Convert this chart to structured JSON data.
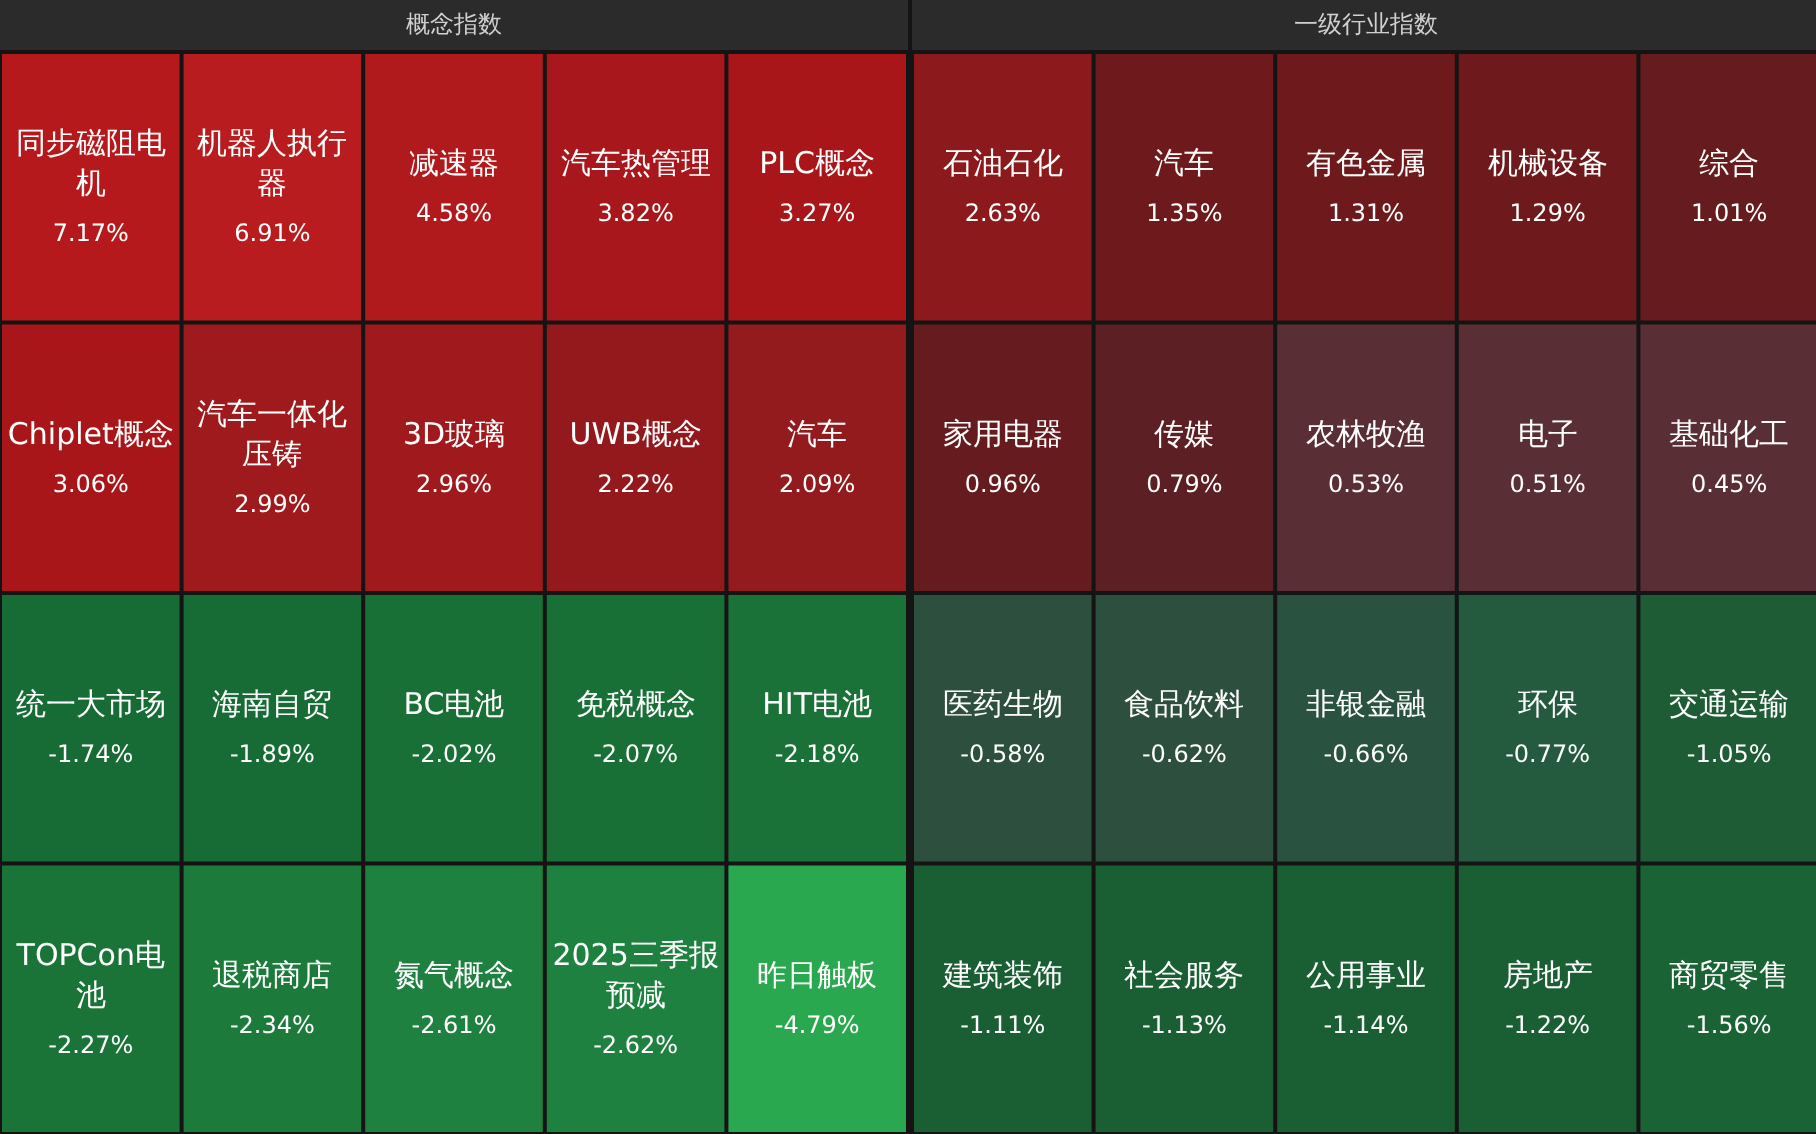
{
  "chart_data": [
    {
      "type": "other",
      "title": "概念指数",
      "categories": [
        "同步磁阻电机",
        "机器人执行器",
        "减速器",
        "汽车热管理",
        "PLC概念",
        "Chiplet概念",
        "汽车一体化压铸",
        "3D玻璃",
        "UWB概念",
        "汽车",
        "统一大市场",
        "海南自贸",
        "BC电池",
        "免税概念",
        "HIT电池",
        "TOPCon电池",
        "退税商店",
        "氮气概念",
        "2025三季报预减",
        "昨日触板"
      ],
      "values": [
        7.17,
        6.91,
        4.58,
        3.82,
        3.27,
        3.06,
        2.99,
        2.96,
        2.22,
        2.09,
        -1.74,
        -1.89,
        -2.02,
        -2.07,
        -2.18,
        -2.27,
        -2.34,
        -2.61,
        -2.62,
        -4.79
      ],
      "value_labels": [
        "7.17%",
        "6.91%",
        "4.58%",
        "3.82%",
        "3.27%",
        "3.06%",
        "2.99%",
        "2.96%",
        "2.22%",
        "2.09%",
        "-1.74%",
        "-1.89%",
        "-2.02%",
        "-2.07%",
        "-2.18%",
        "-2.27%",
        "-2.34%",
        "-2.61%",
        "-2.62%",
        "-4.79%"
      ],
      "colors": [
        "#b5191c",
        "#b81c1e",
        "#b01a1d",
        "#a8171b",
        "#a8161a",
        "#a8161a",
        "#9f1a1d",
        "#a0191c",
        "#93191d",
        "#931a1d",
        "#176b35",
        "#176b35",
        "#197037",
        "#197037",
        "#1a7238",
        "#1a7438",
        "#1c7a3b",
        "#1f8140",
        "#1f8140",
        "#2aa84f"
      ]
    },
    {
      "type": "other",
      "title": "一级行业指数",
      "categories": [
        "石油石化",
        "汽车",
        "有色金属",
        "机械设备",
        "综合",
        "家用电器",
        "传媒",
        "农林牧渔",
        "电子",
        "基础化工",
        "医药生物",
        "食品饮料",
        "非银金融",
        "环保",
        "交通运输",
        "建筑装饰",
        "社会服务",
        "公用事业",
        "房地产",
        "商贸零售"
      ],
      "values": [
        2.63,
        1.35,
        1.31,
        1.29,
        1.01,
        0.96,
        0.79,
        0.53,
        0.51,
        0.45,
        -0.58,
        -0.62,
        -0.66,
        -0.77,
        -1.05,
        -1.11,
        -1.13,
        -1.14,
        -1.22,
        -1.56
      ],
      "value_labels": [
        "2.63%",
        "1.35%",
        "1.31%",
        "1.29%",
        "1.01%",
        "0.96%",
        "0.79%",
        "0.53%",
        "0.51%",
        "0.45%",
        "-0.58%",
        "-0.62%",
        "-0.66%",
        "-0.77%",
        "-1.05%",
        "-1.11%",
        "-1.13%",
        "-1.14%",
        "-1.22%",
        "-1.56%"
      ],
      "colors": [
        "#8c1a1d",
        "#6e1a1d",
        "#6e1a1d",
        "#6e1a1d",
        "#661c1f",
        "#661c1f",
        "#5c1f23",
        "#5a2e35",
        "#5a2e35",
        "#5a2e35",
        "#2d4f3d",
        "#2d4f3d",
        "#2a5240",
        "#245a3e",
        "#1e5c36",
        "#1a5f33",
        "#1a5f33",
        "#1a5f33",
        "#1a5f33",
        "#1a6335"
      ]
    }
  ]
}
